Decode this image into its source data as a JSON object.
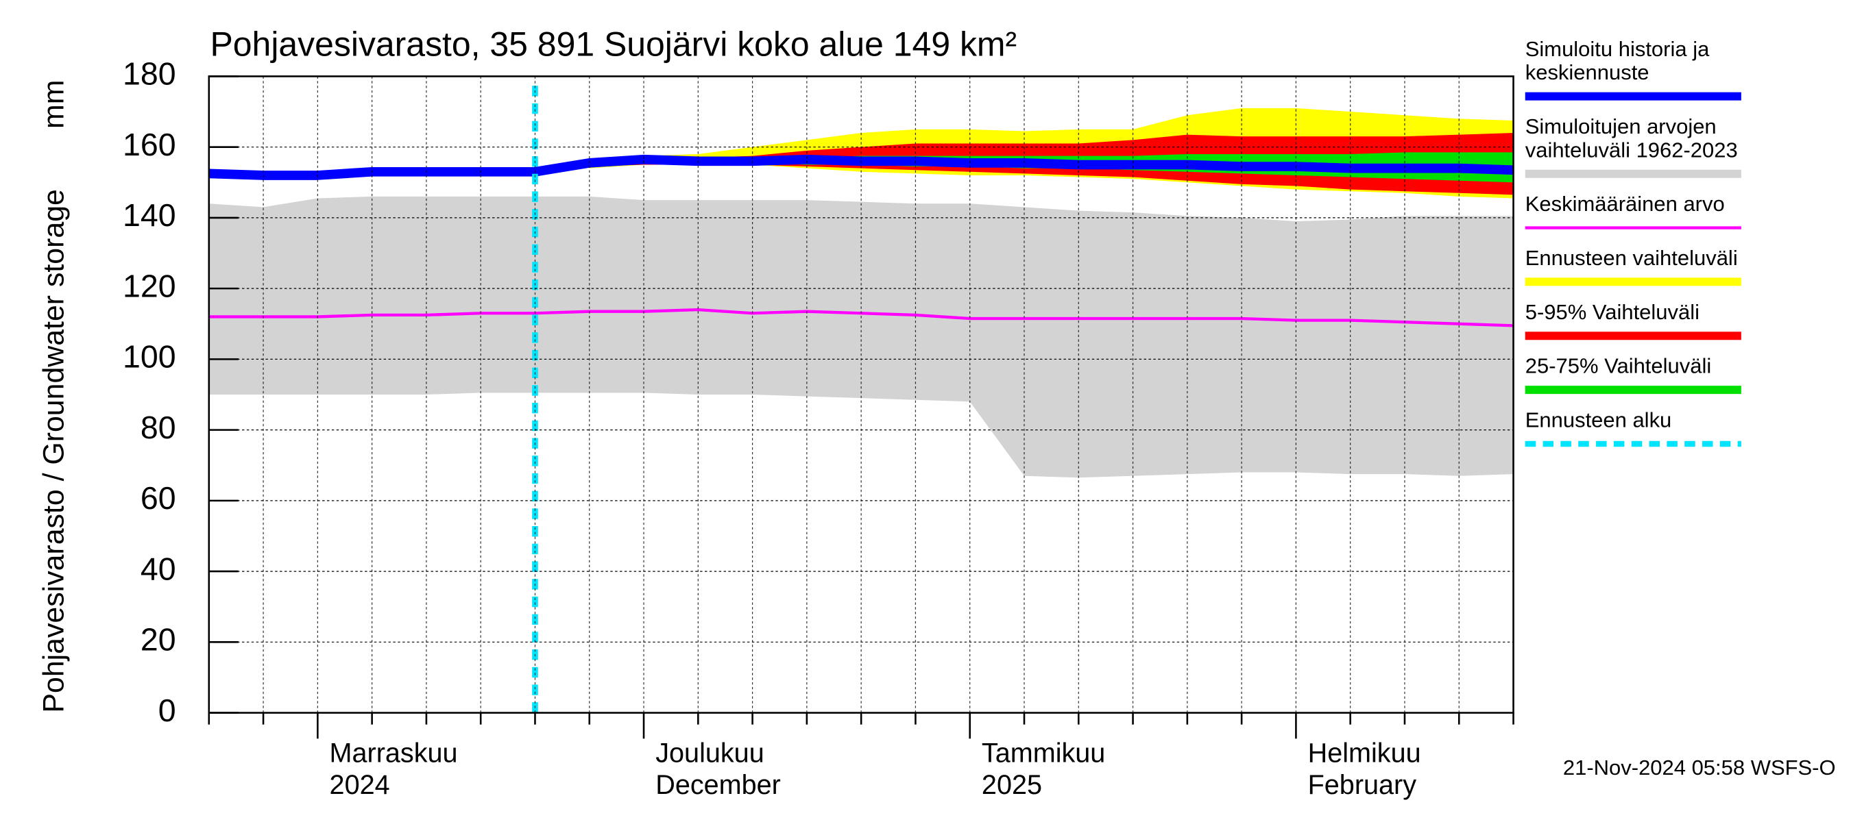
{
  "chart_data": {
    "type": "line",
    "title": "Pohjavesivarasto, 35 891 Suojärvi koko alue 149 km²",
    "y_label": "Pohjavesivarasto / Groundwater storage",
    "y_unit": "mm",
    "footer": "21-Nov-2024 05:58 WSFS-O",
    "categories": [
      null,
      null,
      [
        "Marraskuu",
        "2024"
      ],
      null,
      null,
      null,
      null,
      null,
      [
        "Joulukuu",
        "December"
      ],
      null,
      null,
      null,
      null,
      null,
      [
        "Tammikuu",
        "2025"
      ],
      null,
      null,
      null,
      null,
      null,
      [
        "Helmikuu",
        "February"
      ],
      null,
      null,
      null,
      null
    ],
    "ylim": [
      0,
      180
    ],
    "yticks": [
      0,
      20,
      40,
      60,
      80,
      100,
      120,
      140,
      160,
      180
    ],
    "grid": true,
    "series": [
      {
        "name": [
          "Simuloitu historia ja",
          "keskiennuste"
        ],
        "color": "#0000ff",
        "kind": "line",
        "values": [
          152.5,
          152,
          152,
          153,
          153,
          153,
          153,
          155.5,
          156.5,
          156,
          156,
          156.5,
          156,
          156,
          155.5,
          155.5,
          155,
          155,
          155,
          154.5,
          154.5,
          154,
          154,
          154,
          153.5
        ]
      },
      {
        "name": [
          "Simuloitujen arvojen",
          "vaihteluväli 1962-2023"
        ],
        "color": "#d3d3d3",
        "kind": "band",
        "upper": [
          144,
          143,
          145.5,
          146,
          146,
          146,
          146,
          146,
          145,
          145,
          145,
          145,
          144.5,
          144,
          144,
          143,
          142,
          141.5,
          140.5,
          140,
          139,
          139.5,
          140.5,
          140.5,
          140.5
        ],
        "lower": [
          90,
          90,
          90,
          90,
          90,
          90.5,
          90.5,
          90.5,
          90.5,
          90,
          90,
          89.5,
          89,
          88.5,
          88,
          67,
          66.5,
          67,
          67.5,
          68,
          68,
          67.5,
          67.5,
          67,
          67.5
        ]
      },
      {
        "name": [
          "Keskimääräinen arvo"
        ],
        "color": "#ff00ff",
        "kind": "line",
        "values": [
          112,
          112,
          112,
          112.5,
          112.5,
          113,
          113,
          113.5,
          113.5,
          114,
          113,
          113.5,
          113,
          112.5,
          111.5,
          111.5,
          111.5,
          111.5,
          111.5,
          111.5,
          111,
          111,
          110.5,
          110,
          109.5
        ]
      },
      {
        "name": [
          "Ennusteen vaihteluväli"
        ],
        "color": "#ffff00",
        "kind": "band",
        "upper": [
          null,
          null,
          null,
          null,
          null,
          null,
          null,
          156,
          157.5,
          158,
          160,
          162,
          164,
          165,
          165,
          164.5,
          165,
          165,
          169,
          171,
          171,
          170,
          169,
          168,
          167.5
        ],
        "lower": [
          null,
          null,
          null,
          null,
          null,
          null,
          null,
          154,
          155,
          155,
          155,
          154,
          153,
          152.5,
          152,
          152,
          151.5,
          151,
          150,
          149,
          148,
          147.5,
          147,
          146,
          145.5
        ]
      },
      {
        "name": [
          "5-95% Vaihteluväli"
        ],
        "color": "#ff0000",
        "kind": "band",
        "upper": [
          null,
          null,
          null,
          null,
          null,
          null,
          null,
          156,
          157,
          157,
          157.5,
          159,
          160,
          161,
          161,
          161,
          161,
          162,
          163.5,
          163,
          163,
          163,
          163,
          163.5,
          164
        ],
        "lower": [
          null,
          null,
          null,
          null,
          null,
          null,
          null,
          154.5,
          155,
          155,
          155,
          154.5,
          154,
          153.5,
          153,
          152.5,
          152,
          151.5,
          150.5,
          149.5,
          149,
          148,
          147.5,
          147,
          146.5
        ]
      },
      {
        "name": [
          "25-75% Vaihteluväli"
        ],
        "color": "#00e000",
        "kind": "band",
        "upper": [
          null,
          null,
          null,
          null,
          null,
          null,
          null,
          156,
          156.5,
          157,
          157,
          157,
          157.5,
          157.5,
          157.5,
          157.5,
          157.5,
          157.5,
          158,
          158,
          158,
          158,
          158.5,
          158.5,
          158.5
        ],
        "lower": [
          null,
          null,
          null,
          null,
          null,
          null,
          null,
          155,
          155.5,
          155.5,
          155.5,
          155,
          155,
          154.5,
          154.5,
          154,
          154,
          153.5,
          153,
          152.5,
          152,
          151.5,
          151,
          150.5,
          150
        ]
      },
      {
        "name": [
          "Ennusteen alku"
        ],
        "color": "#00e5ff",
        "kind": "vline",
        "at": 6
      }
    ],
    "draw_order": [
      1,
      3,
      4,
      5,
      2,
      0,
      6
    ]
  }
}
